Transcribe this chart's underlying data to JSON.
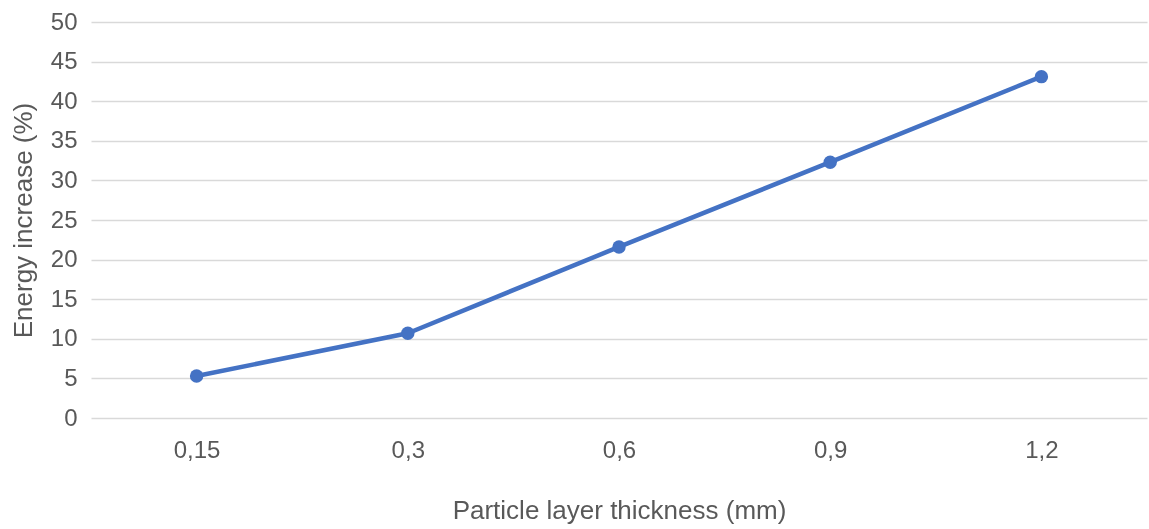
{
  "chart_data": {
    "type": "line",
    "xlabel": "Particle layer thickness (mm)",
    "ylabel": "Energy increase (%)",
    "categories": [
      "0,15",
      "0,3",
      "0,6",
      "0,9",
      "1,2"
    ],
    "series": [
      {
        "color": "#4472c4",
        "values": [
          5.3,
          10.7,
          21.6,
          32.3,
          43.1
        ]
      }
    ],
    "ylim": [
      0,
      50
    ],
    "yticks": [
      0,
      5,
      10,
      15,
      20,
      25,
      30,
      35,
      40,
      45,
      50
    ],
    "grid": "y",
    "marker": "circle",
    "line_style": "solid"
  }
}
